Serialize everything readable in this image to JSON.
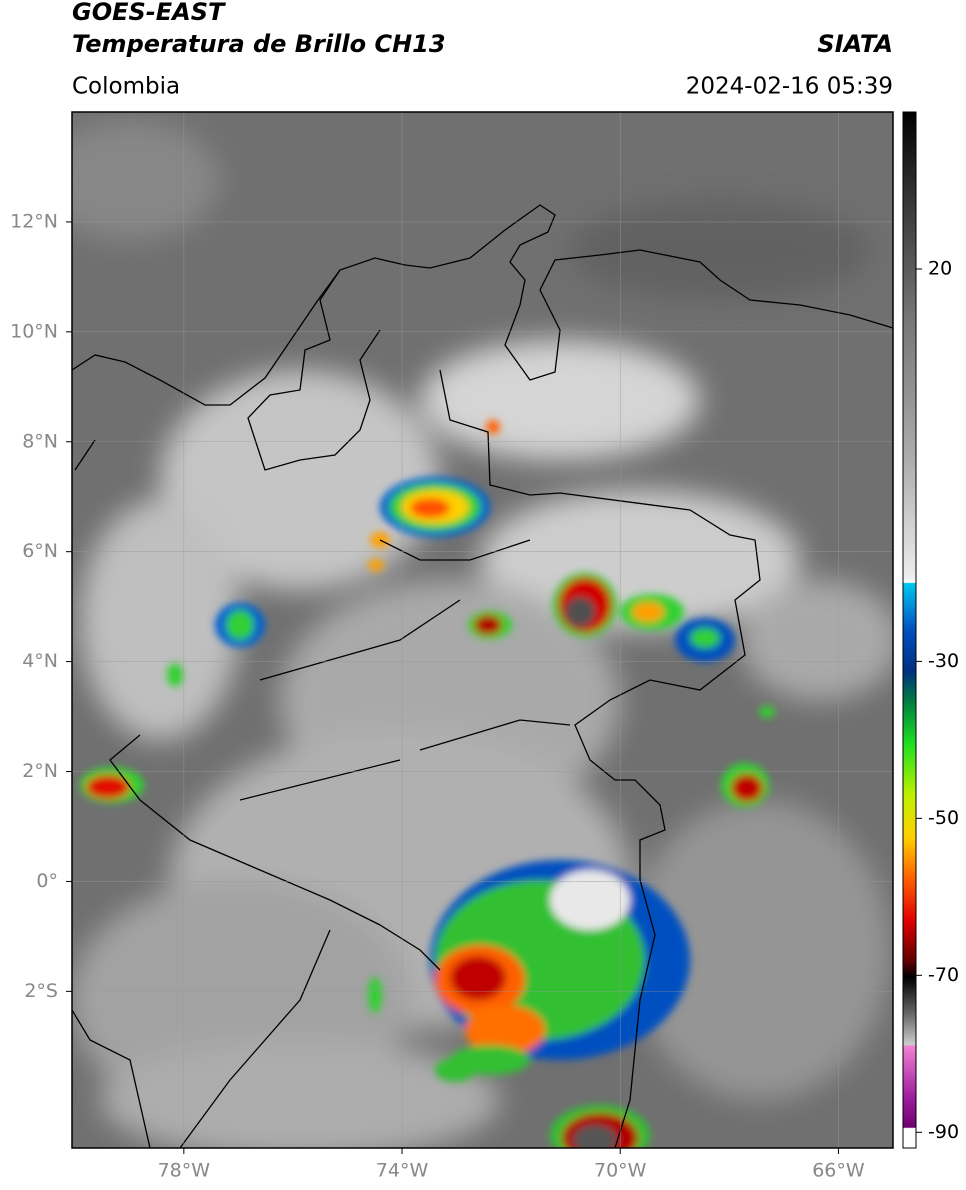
{
  "header": {
    "title": "GOES-EAST",
    "subtitle": "Temperatura de Brillo CH13",
    "region": "Colombia",
    "source": "SIATA",
    "timestamp": "2024-02-16 05:39"
  },
  "map": {
    "xlim": [
      -80.05,
      -65
    ],
    "ylim": [
      -4.85,
      14
    ],
    "xticks": [
      {
        "value": -78,
        "label": "78°W"
      },
      {
        "value": -74,
        "label": "74°W"
      },
      {
        "value": -70,
        "label": "70°W"
      },
      {
        "value": -66,
        "label": "66°W"
      }
    ],
    "yticks": [
      {
        "value": 12,
        "label": "12°N"
      },
      {
        "value": 10,
        "label": "10°N"
      },
      {
        "value": 8,
        "label": "8°N"
      },
      {
        "value": 6,
        "label": "6°N"
      },
      {
        "value": 4,
        "label": "4°N"
      },
      {
        "value": 2,
        "label": "2°N"
      },
      {
        "value": 0,
        "label": "0°"
      },
      {
        "value": -2,
        "label": "2°S"
      }
    ],
    "grid": true
  },
  "colorbar": {
    "lim": [
      -92,
      40
    ],
    "ticks": [
      20,
      -30,
      -50,
      -70,
      -90
    ]
  }
}
